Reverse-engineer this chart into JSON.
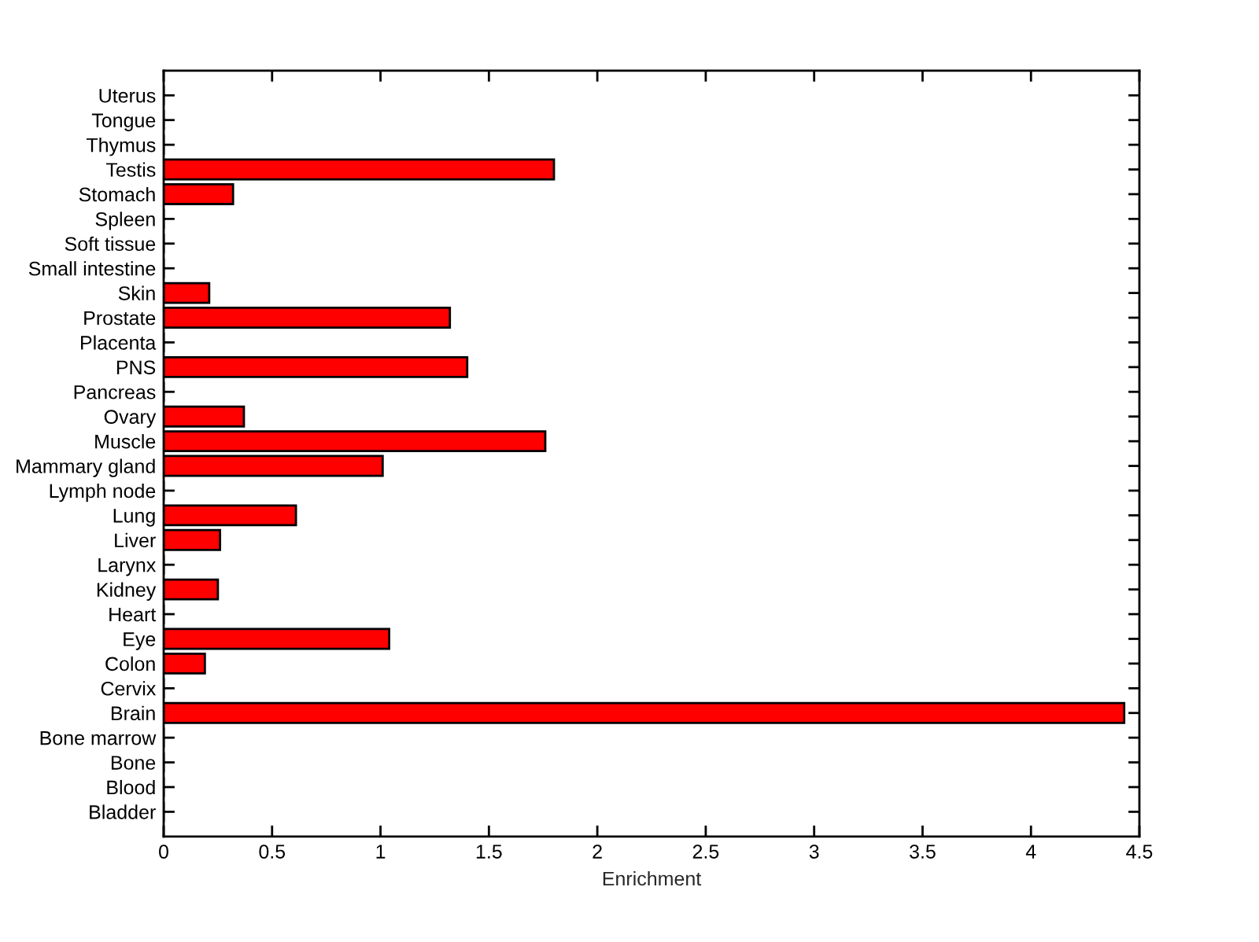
{
  "chart_data": {
    "type": "bar",
    "orientation": "horizontal",
    "xlabel": "Enrichment",
    "categories": [
      "Uterus",
      "Tongue",
      "Thymus",
      "Testis",
      "Stomach",
      "Spleen",
      "Soft tissue",
      "Small intestine",
      "Skin",
      "Prostate",
      "Placenta",
      "PNS",
      "Pancreas",
      "Ovary",
      "Muscle",
      "Mammary gland",
      "Lymph node",
      "Lung",
      "Liver",
      "Larynx",
      "Kidney",
      "Heart",
      "Eye",
      "Colon",
      "Cervix",
      "Brain",
      "Bone marrow",
      "Bone",
      "Blood",
      "Bladder"
    ],
    "values": [
      0,
      0,
      0,
      1.8,
      0.32,
      0,
      0,
      0,
      0.21,
      1.32,
      0,
      1.4,
      0,
      0.37,
      1.76,
      1.01,
      0,
      0.61,
      0.26,
      0,
      0.25,
      0,
      1.04,
      0.19,
      0,
      4.43,
      0,
      0,
      0,
      0
    ],
    "color": "#ff0000",
    "xlim": [
      0,
      4.5
    ],
    "xticks": [
      0,
      0.5,
      1,
      1.5,
      2,
      2.5,
      3,
      3.5,
      4,
      4.5
    ],
    "grid": false
  }
}
